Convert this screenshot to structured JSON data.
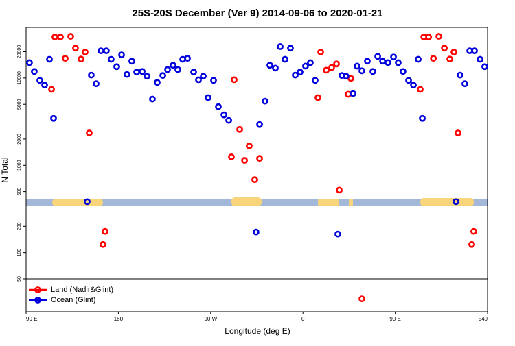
{
  "chart_data": {
    "type": "scatter",
    "title": "25S-20S December (Ver 9)   2014-09-06 to 2020-01-21",
    "x_label": "Longitude (deg E)",
    "y_label": "N Total",
    "xlim": [
      90,
      540
    ],
    "ylim": [
      21,
      38000
    ],
    "y_scale": "log",
    "legend": "lower left",
    "xticks": [
      {
        "value": 90,
        "label": "90 E"
      },
      180,
      {
        "value": 270,
        "label": "90 W"
      },
      {
        "value": 360,
        "label": "0"
      },
      {
        "value": 450,
        "label": "90 E"
      },
      540
    ],
    "yticks": [
      50,
      100,
      200,
      500,
      1000,
      2000,
      5000,
      10000,
      20000
    ],
    "series": [
      {
        "name": "Land (Nadir&Glint)",
        "color": "#ff0000",
        "x": [
          114.8,
          118.1,
          123.5,
          128.2,
          133.5,
          138.2,
          143.6,
          147.6,
          151.6,
          165,
          167,
          290.2,
          292.9,
          298.3,
          303,
          307.6,
          313,
          317.7,
          374.6,
          377.3,
          382.7,
          388,
          392.7,
          395.4,
          404.1,
          406.7,
          417.5,
          474.4,
          477.8,
          482.5,
          487.2,
          492.5,
          497.9,
          503.2,
          507.2,
          511.2,
          524.6,
          526.6
        ],
        "values": [
          7400,
          29500,
          29500,
          16800,
          30000,
          22000,
          16500,
          19800,
          2350,
          124,
          175,
          1250,
          9550,
          2580,
          1140,
          1670,
          685,
          1200,
          5960,
          19800,
          12300,
          13200,
          14500,
          520,
          6520,
          9900,
          29.5,
          7400,
          29500,
          29500,
          16800,
          30000,
          22000,
          16500,
          19800,
          2350,
          124,
          175
        ]
      },
      {
        "name": "Ocean (Glint)",
        "color": "#0000dd",
        "x": [
          93.3,
          98,
          103.4,
          108.1,
          112.8,
          116.8,
          149.6,
          153.6,
          158.3,
          163,
          168.3,
          173,
          178.4,
          183.1,
          188.4,
          193.1,
          197.8,
          203.2,
          207.9,
          213.2,
          217.9,
          223.3,
          228,
          233.3,
          238,
          242.7,
          247.4,
          253.4,
          258.1,
          262.8,
          267.5,
          272.8,
          277.5,
          282.9,
          287.6,
          314.3,
          317.7,
          323,
          327.7,
          333.1,
          337.8,
          342.5,
          347.8,
          352.5,
          357.2,
          362.5,
          367.2,
          371.9,
          394,
          398,
          402,
          408.8,
          412.8,
          417.5,
          422.8,
          428.2,
          432.9,
          437.6,
          442.9,
          448.3,
          452.9,
          457.6,
          463,
          467.7,
          472.4,
          476.4,
          509.2,
          513.2,
          517.9,
          522.6,
          527.3,
          532.7,
          537.3
        ],
        "values": [
          15000,
          11900,
          9400,
          8300,
          16400,
          3450,
          383,
          10800,
          8600,
          20500,
          20500,
          16400,
          13500,
          18400,
          11000,
          15600,
          11700,
          11900,
          10500,
          5740,
          8900,
          10700,
          12500,
          14000,
          12500,
          16400,
          16800,
          11700,
          9550,
          10500,
          5960,
          9400,
          4700,
          3780,
          3270,
          172,
          2930,
          5430,
          14000,
          13000,
          22900,
          16400,
          22000,
          10800,
          11700,
          13700,
          15000,
          9400,
          163,
          10700,
          10500,
          6640,
          13700,
          12100,
          15600,
          11900,
          17700,
          15600,
          15000,
          17400,
          15000,
          11900,
          9400,
          8300,
          16400,
          3450,
          383,
          10800,
          8600,
          20500,
          20500,
          16400,
          13500
        ]
      }
    ]
  }
}
